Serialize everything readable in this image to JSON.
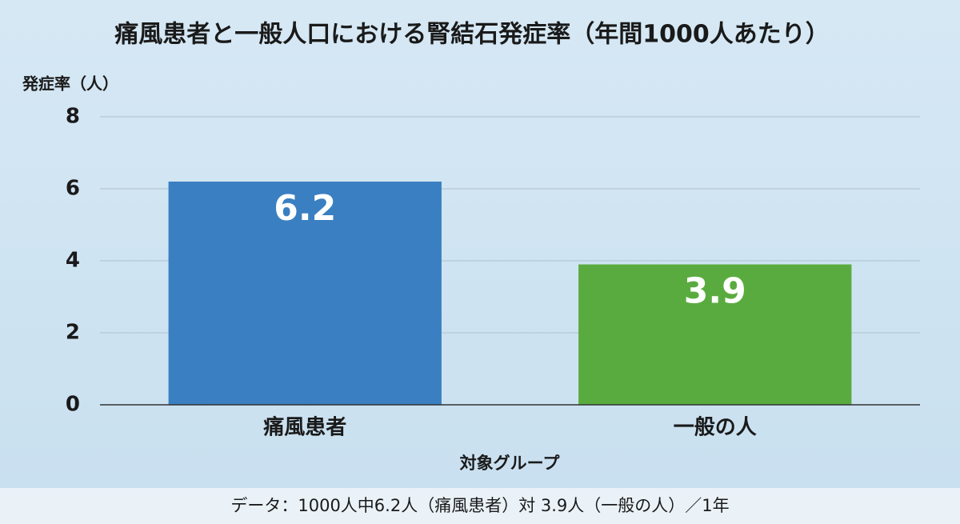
{
  "chart_data": {
    "type": "bar",
    "title": "痛風患者と一般人口における腎結石発症率（年間1000人あたり）",
    "y_label": "発症率（人）",
    "x_label": "対象グループ",
    "footnote": "データ：1000人中6.2人（痛風患者）対 3.9人（一般の人）／1年",
    "categories": [
      "痛風患者",
      "一般の人"
    ],
    "values": [
      6.2,
      3.9
    ],
    "colors": [
      "#3a7fc1",
      "#5aab3f"
    ],
    "ylim": [
      0,
      8
    ],
    "yticks": [
      0,
      2,
      4,
      6,
      8
    ],
    "grid": true
  }
}
